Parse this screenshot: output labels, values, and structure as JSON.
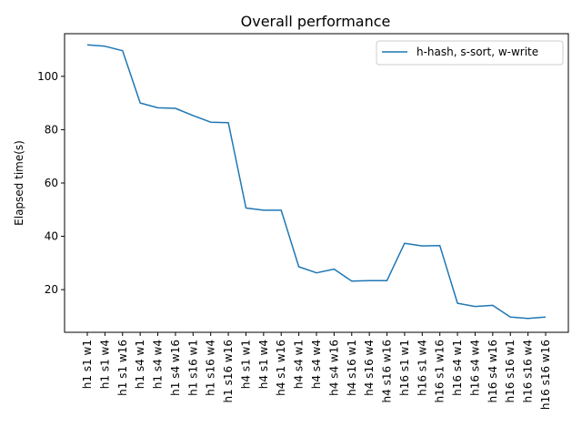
{
  "chart_data": {
    "type": "line",
    "title": "Overall performance",
    "xlabel": "",
    "ylabel": "Elapsed time(s)",
    "ylim": [
      4,
      116
    ],
    "yticks": [
      20,
      40,
      60,
      80,
      100
    ],
    "legend_position": "top-right",
    "grid": false,
    "categories": [
      "h1 s1 w1",
      "h1 s1 w4",
      "h1 s1 w16",
      "h1 s4 w1",
      "h1 s4 w4",
      "h1 s4 w16",
      "h1 s16 w1",
      "h1 s16 w4",
      "h1 s16 w16",
      "h4 s1 w1",
      "h4 s1 w4",
      "h4 s1 w16",
      "h4 s4 w1",
      "h4 s4 w4",
      "h4 s4 w16",
      "h4 s16 w1",
      "h4 s16 w4",
      "h4 s16 w16",
      "h16 s1 w1",
      "h16 s1 w4",
      "h16 s1 w16",
      "h16 s4 w1",
      "h16 s4 w4",
      "h16 s4 w16",
      "h16 s16 w1",
      "h16 s16 w4",
      "h16 s16 w16"
    ],
    "series": [
      {
        "name": "h-hash, s-sort, w-write",
        "color": "#1f77b4",
        "values": [
          111.8,
          111.3,
          109.6,
          90.0,
          88.2,
          88.0,
          85.3,
          82.8,
          82.6,
          50.6,
          49.8,
          49.8,
          28.6,
          26.3,
          27.7,
          23.2,
          23.4,
          23.4,
          37.4,
          36.4,
          36.5,
          14.9,
          13.7,
          14.1,
          9.7,
          9.2,
          9.7
        ]
      }
    ]
  }
}
